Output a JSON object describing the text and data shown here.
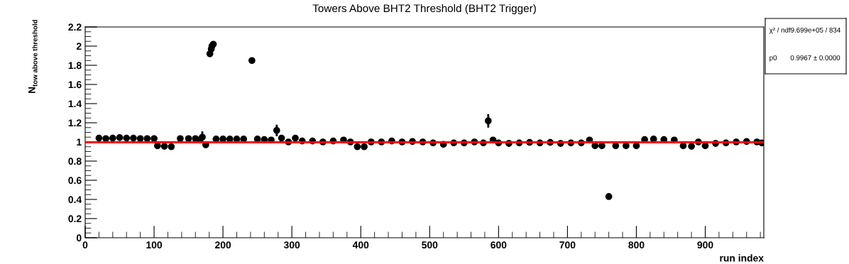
{
  "chart_data": {
    "type": "scatter",
    "title": "Towers Above BHT2 Threshold (BHT2 Trigger)",
    "xlabel": "run index",
    "ylabel": "N$_{tow above threshold}$",
    "xlim": [
      0,
      985
    ],
    "ylim": [
      0,
      2.2
    ],
    "xticks": [
      0,
      100,
      200,
      300,
      400,
      500,
      600,
      700,
      800,
      900
    ],
    "yticks": [
      0,
      0.2,
      0.4,
      0.6,
      0.8,
      1,
      1.2,
      1.4,
      1.6,
      1.8,
      2,
      2.2
    ],
    "marker": "circle",
    "grid": false,
    "legend": false,
    "series": [
      {
        "color": "#000000",
        "x": [
          20,
          30,
          40,
          50,
          60,
          70,
          80,
          90,
          100,
          105,
          115,
          125,
          138,
          150,
          160,
          166,
          170,
          175,
          181,
          183,
          184,
          186,
          190,
          200,
          210,
          220,
          230,
          242,
          250,
          260,
          270,
          278,
          285,
          295,
          305,
          315,
          330,
          345,
          360,
          375,
          385,
          395,
          405,
          415,
          430,
          445,
          460,
          475,
          490,
          505,
          520,
          535,
          550,
          565,
          578,
          585,
          592,
          600,
          615,
          630,
          645,
          660,
          675,
          690,
          705,
          720,
          732,
          740,
          750,
          760,
          770,
          785,
          800,
          812,
          825,
          840,
          855,
          868,
          880,
          890,
          900,
          915,
          930,
          945,
          960,
          975,
          982
        ],
        "values": [
          1.04,
          1.035,
          1.04,
          1.045,
          1.04,
          1.04,
          1.035,
          1.035,
          1.035,
          0.96,
          0.955,
          0.95,
          1.035,
          1.035,
          1.035,
          1.02,
          1.05,
          0.97,
          1.92,
          1.97,
          2.0,
          2.02,
          1.03,
          1.03,
          1.03,
          1.03,
          1.03,
          1.85,
          1.03,
          1.025,
          1.02,
          1.12,
          1.04,
          1.0,
          1.04,
          1.01,
          1.01,
          1.0,
          1.01,
          1.02,
          1.0,
          0.95,
          0.95,
          1.0,
          1.0,
          1.01,
          1.0,
          1.005,
          1.0,
          0.99,
          0.975,
          0.99,
          0.99,
          1.0,
          0.99,
          1.22,
          1.02,
          0.99,
          0.985,
          0.99,
          0.995,
          0.99,
          0.995,
          0.985,
          0.99,
          0.99,
          1.02,
          0.96,
          0.96,
          0.43,
          0.96,
          0.96,
          0.96,
          1.025,
          1.03,
          1.025,
          1.02,
          0.96,
          0.955,
          1.0,
          0.96,
          0.985,
          0.99,
          1.0,
          1.005,
          1.0,
          0.99
        ],
        "errors": [
          null,
          null,
          null,
          null,
          null,
          null,
          null,
          null,
          null,
          null,
          null,
          null,
          null,
          null,
          null,
          null,
          0.06,
          null,
          null,
          null,
          null,
          null,
          null,
          null,
          null,
          null,
          null,
          null,
          null,
          null,
          null,
          0.06,
          null,
          null,
          null,
          null,
          null,
          null,
          null,
          null,
          null,
          null,
          null,
          null,
          null,
          null,
          null,
          null,
          null,
          null,
          null,
          null,
          null,
          null,
          null,
          0.07,
          null,
          null,
          null,
          null,
          null,
          null,
          null,
          null,
          null,
          null,
          null,
          null,
          null,
          null,
          null,
          null,
          null,
          null,
          null,
          null,
          null,
          null,
          null,
          null,
          null,
          null,
          null,
          null,
          null,
          null,
          null
        ]
      },
      {
        "type": "line",
        "marker": "none",
        "color": "#ff0000",
        "x": [
          0,
          985
        ],
        "values": [
          0.9967,
          0.9967
        ]
      }
    ],
    "annotations": [
      "χ² / ndf9.699e+05 / 834",
      "p0       0.9967 ± 0.0000"
    ]
  }
}
